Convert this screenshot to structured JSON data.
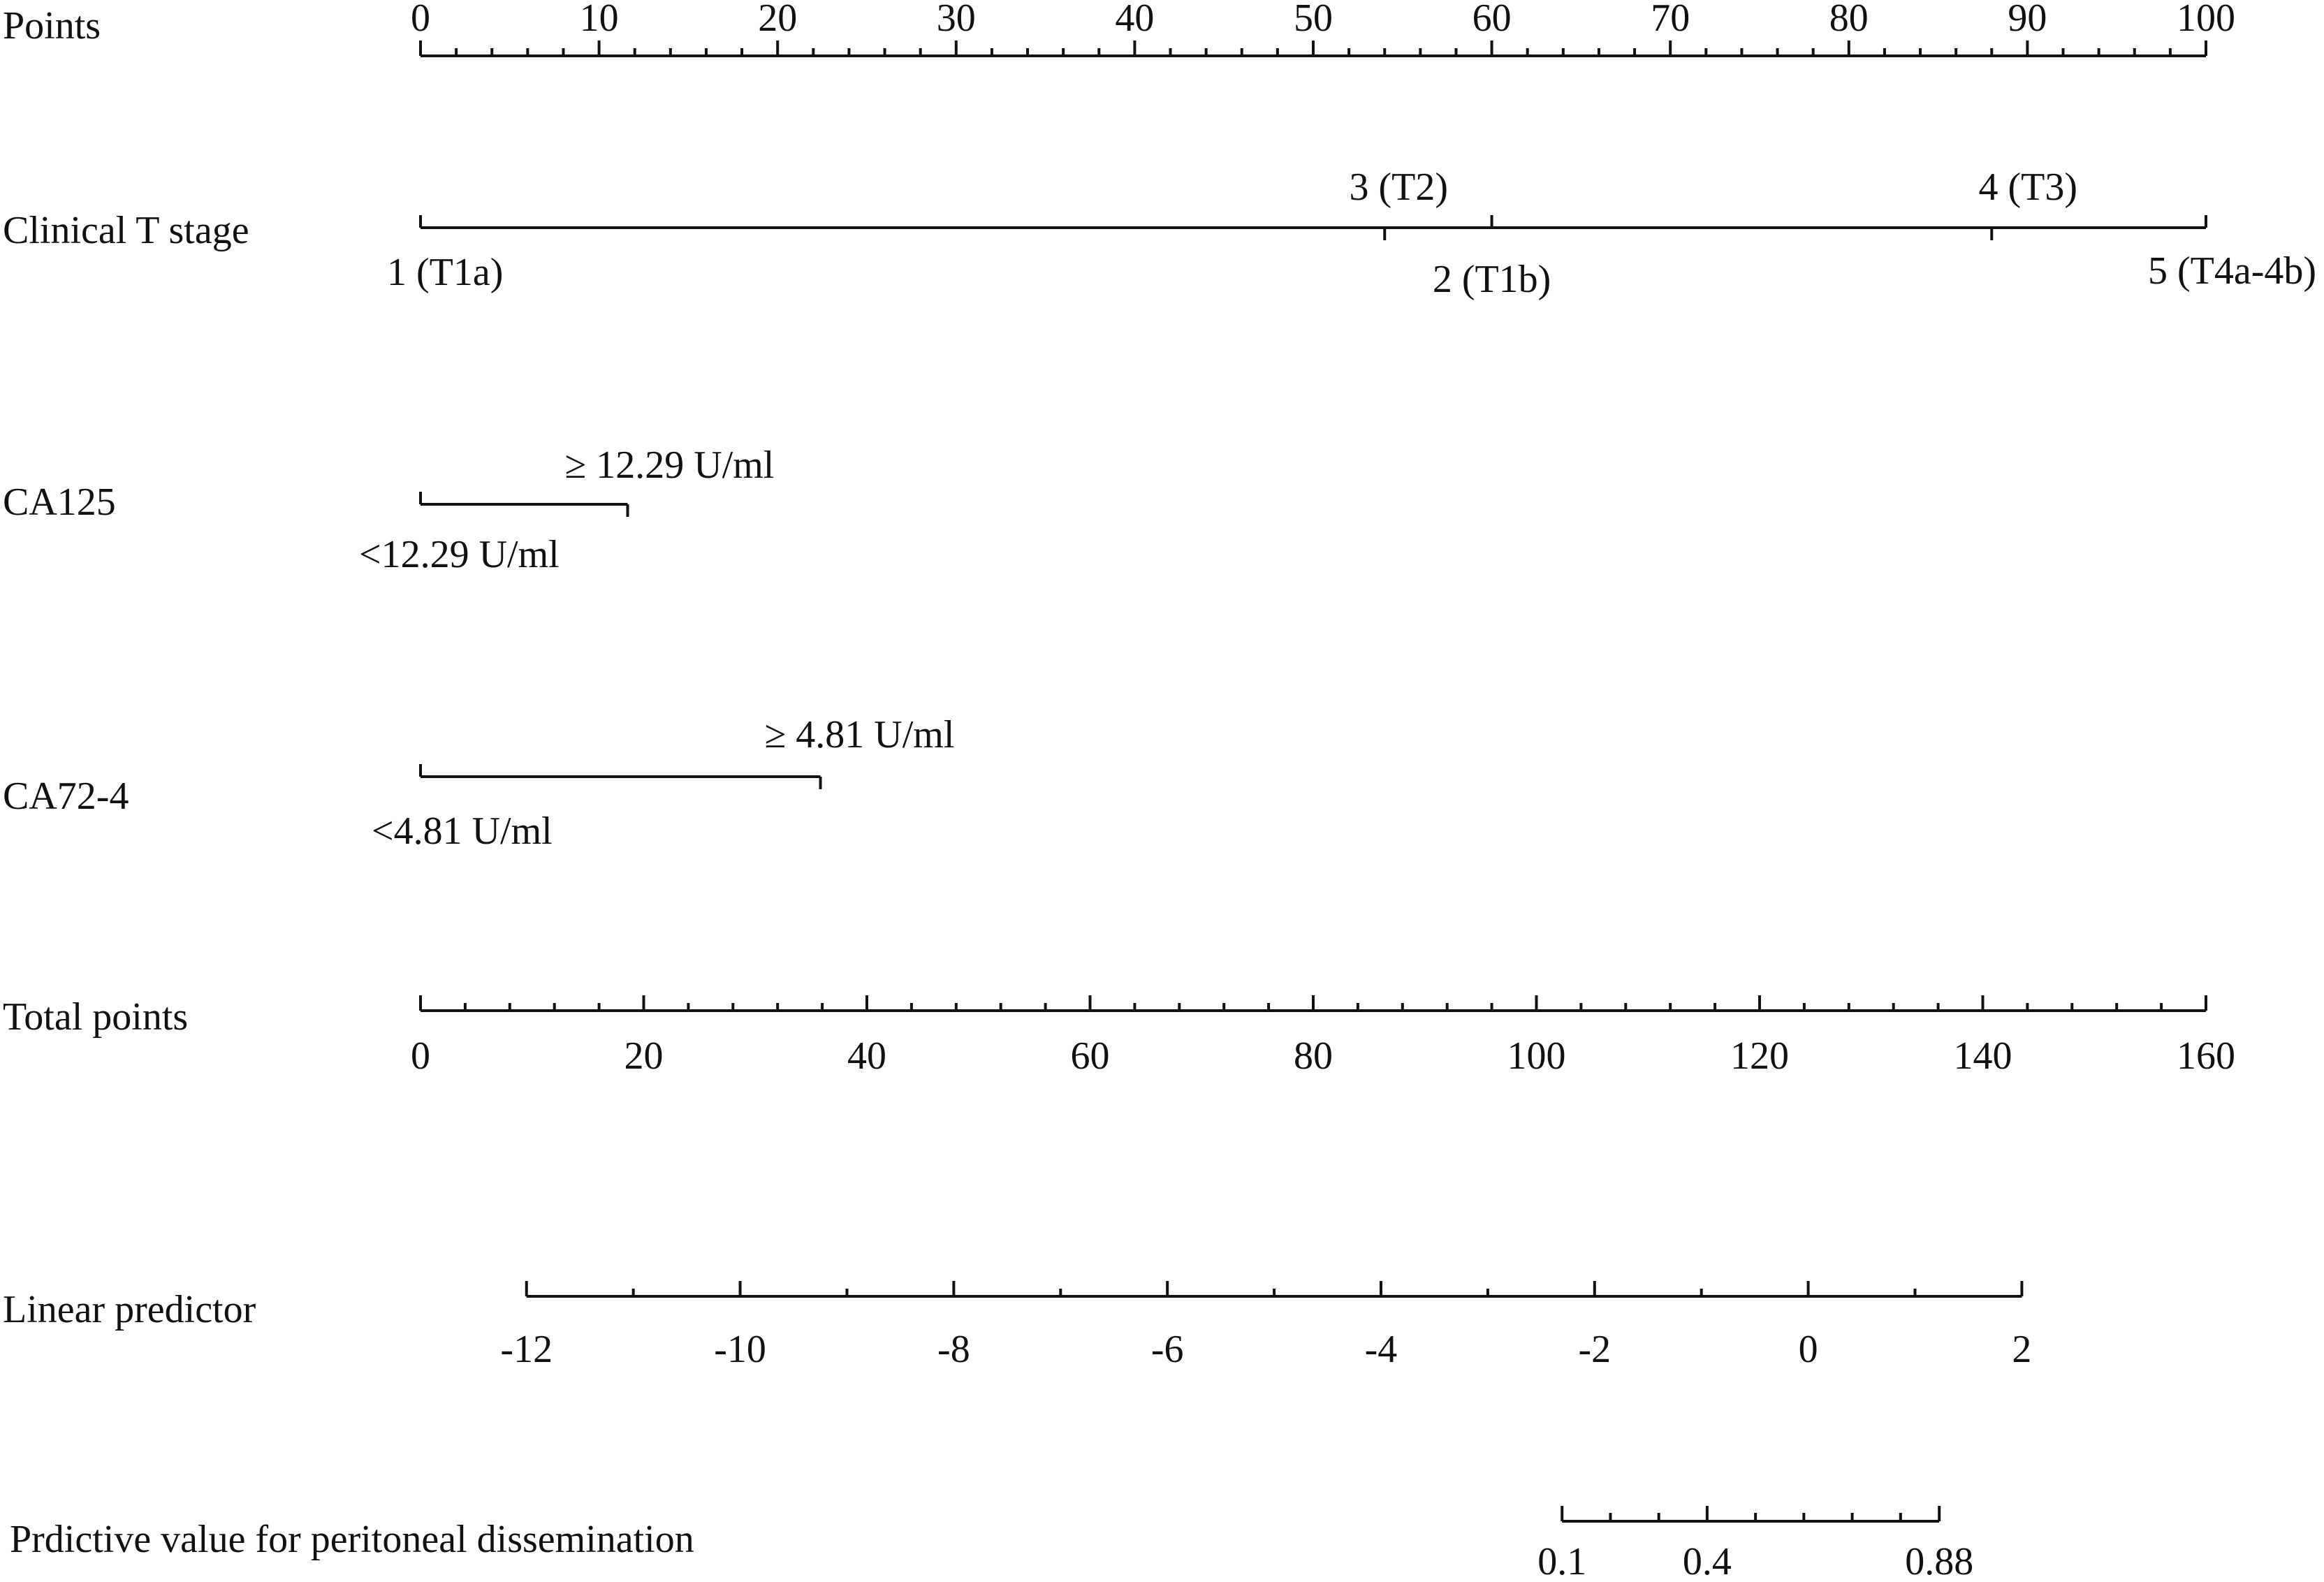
{
  "chart_data": {
    "type": "nomogram",
    "title": "",
    "rows": [
      {
        "id": "points",
        "label": "Points",
        "range": [
          0,
          100
        ],
        "major_ticks": [
          0,
          10,
          20,
          30,
          40,
          50,
          60,
          70,
          80,
          90,
          100
        ],
        "minor_step": 2,
        "tick_labels": [
          "0",
          "10",
          "20",
          "30",
          "40",
          "50",
          "60",
          "70",
          "80",
          "90",
          "100"
        ]
      },
      {
        "id": "clinical-t-stage",
        "label": "Clinical T stage",
        "levels": [
          {
            "label": "1 (T1a)",
            "points": 0,
            "label_side": "below"
          },
          {
            "label": "2 (T1b)",
            "points": 60,
            "label_side": "below"
          },
          {
            "label": "3 (T2)",
            "points": 54,
            "label_side": "above"
          },
          {
            "label": "4 (T3)",
            "points": 88,
            "label_side": "above"
          },
          {
            "label": "5 (T4a-4b)",
            "points": 100,
            "label_side": "below"
          }
        ]
      },
      {
        "id": "ca125",
        "label": "CA125",
        "levels": [
          {
            "label": "<12.29 U/ml",
            "points": 0,
            "label_side": "below"
          },
          {
            "label": "≥ 12.29 U/ml",
            "points": 11.6,
            "label_side": "above"
          }
        ]
      },
      {
        "id": "ca72-4",
        "label": "CA72-4",
        "levels": [
          {
            "label": "<4.81 U/ml",
            "points": 0,
            "label_side": "below"
          },
          {
            "label": "≥ 4.81 U/ml",
            "points": 22.4,
            "label_side": "above"
          }
        ]
      },
      {
        "id": "total-points",
        "label": "Total points",
        "range": [
          0,
          160
        ],
        "major_ticks": [
          0,
          20,
          40,
          60,
          80,
          100,
          120,
          140,
          160
        ],
        "minor_step": 4,
        "tick_labels": [
          "0",
          "20",
          "40",
          "60",
          "80",
          "100",
          "120",
          "140",
          "160"
        ]
      },
      {
        "id": "linear-predictor",
        "label": "Linear predictor",
        "range": [
          -12,
          2
        ],
        "major_ticks": [
          -12,
          -10,
          -8,
          -6,
          -4,
          -2,
          0,
          2
        ],
        "minor_step": 1,
        "tick_labels": [
          "-12",
          "-10",
          "-8",
          "-6",
          "-4",
          "-2",
          "0",
          "2"
        ],
        "total_points_at_range": [
          9.5,
          143.5
        ]
      },
      {
        "id": "predictive-value",
        "label": "Prdictive value for peritoneal dissemination",
        "range": [
          0.1,
          0.88
        ],
        "ticks": [
          0.1,
          0.2,
          0.3,
          0.4,
          0.5,
          0.6,
          0.7,
          0.8,
          0.88
        ],
        "tick_labels": [
          "0.1",
          "0.4",
          "0.88"
        ],
        "labeled_ticks": [
          0.1,
          0.4,
          0.88
        ],
        "total_points_at_range": [
          102.3,
          136.1
        ]
      }
    ]
  }
}
